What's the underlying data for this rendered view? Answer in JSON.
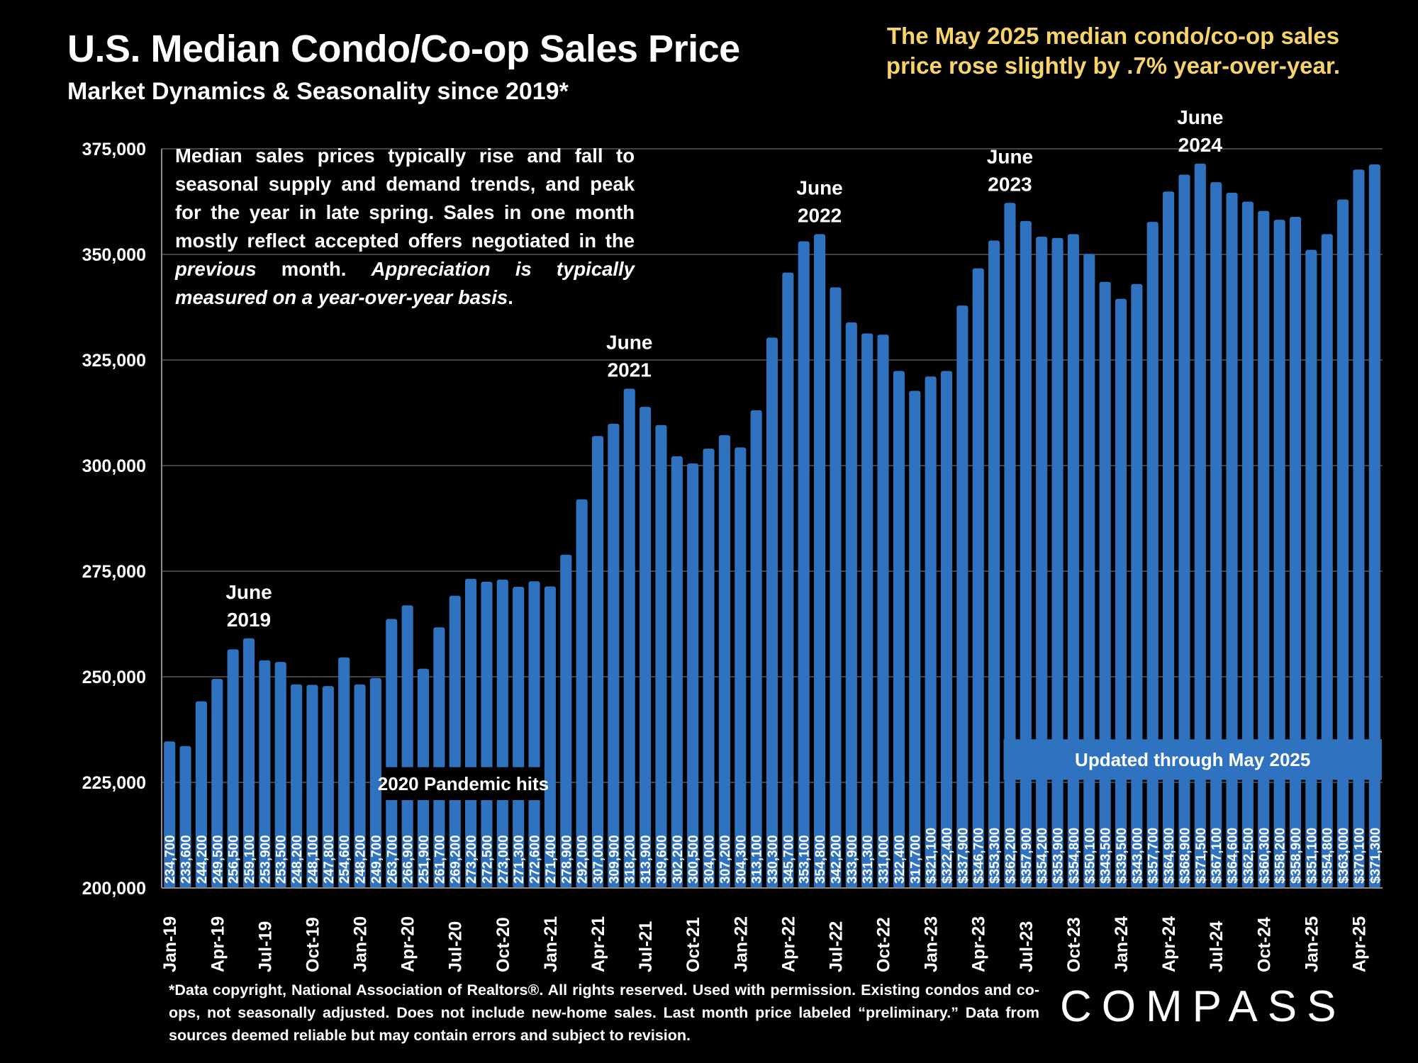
{
  "header": {
    "title": "U.S. Median Condo/Co-op Sales Price",
    "subtitle": "Market Dynamics & Seasonality since 2019*",
    "headline_line1": "The May 2025 median condo/co-op sales",
    "headline_line2": "price rose slightly by .7% year-over-year."
  },
  "explanation": {
    "part1": "Median sales prices typically rise and fall to seasonal supply and demand trends, and peak for the year in late spring. Sales in one month mostly reflect accepted offers negotiated in the ",
    "italic1": "previous",
    "part2": " month. ",
    "italic2": "Appreciation is typically measured on a year-over-year basis",
    "part3": "."
  },
  "footnote": "*Data copyright, National Association of Realtors®. All rights reserved. Used with permission. Existing condos and co-ops, not seasonally adjusted. Does not include new-home sales. Last month price labeled “preliminary.” Data from sources deemed reliable but may contain errors and subject to revision.",
  "logo": "COMPASS",
  "colors": {
    "bar": "#2f72bf",
    "headline": "#f7d36b",
    "background": "#000000",
    "grid": "#595959"
  },
  "chart_data": {
    "type": "bar",
    "title": "U.S. Median Condo/Co-op Sales Price",
    "subtitle": "Market Dynamics & Seasonality since 2019*",
    "xlabel": "",
    "ylabel": "",
    "ylim": [
      200000,
      375000
    ],
    "yticks": [
      200000,
      225000,
      250000,
      275000,
      300000,
      325000,
      350000,
      375000
    ],
    "ytick_labels": [
      "200,000",
      "225,000",
      "250,000",
      "275,000",
      "300,000",
      "325,000",
      "350,000",
      "375,000"
    ],
    "grid": true,
    "categories": [
      "Jan-19",
      "Feb-19",
      "Mar-19",
      "Apr-19",
      "May-19",
      "Jun-19",
      "Jul-19",
      "Aug-19",
      "Sep-19",
      "Oct-19",
      "Nov-19",
      "Dec-19",
      "Jan-20",
      "Feb-20",
      "Mar-20",
      "Apr-20",
      "May-20",
      "Jun-20",
      "Jul-20",
      "Aug-20",
      "Sep-20",
      "Oct-20",
      "Nov-20",
      "Dec-20",
      "Jan-21",
      "Feb-21",
      "Mar-21",
      "Apr-21",
      "May-21",
      "Jun-21",
      "Jul-21",
      "Aug-21",
      "Sep-21",
      "Oct-21",
      "Nov-21",
      "Dec-21",
      "Jan-22",
      "Feb-22",
      "Mar-22",
      "Apr-22",
      "May-22",
      "Jun-22",
      "Jul-22",
      "Aug-22",
      "Sep-22",
      "Oct-22",
      "Nov-22",
      "Dec-22",
      "Jan-23",
      "Feb-23",
      "Mar-23",
      "Apr-23",
      "May-23",
      "Jun-23",
      "Jul-23",
      "Aug-23",
      "Sep-23",
      "Oct-23",
      "Nov-23",
      "Dec-23",
      "Jan-24",
      "Feb-24",
      "Mar-24",
      "Apr-24",
      "May-24",
      "Jun-24",
      "Jul-24",
      "Aug-24",
      "Sep-24",
      "Oct-24",
      "Nov-24",
      "Dec-24",
      "Jan-25",
      "Feb-25",
      "Mar-25",
      "Apr-25",
      "May-25"
    ],
    "xtick_labels_shown": [
      "Jan-19",
      "Apr-19",
      "Jul-19",
      "Oct-19",
      "Jan-20",
      "Apr-20",
      "Jul-20",
      "Oct-20",
      "Jan-21",
      "Apr-21",
      "Jul-21",
      "Oct-21",
      "Jan-22",
      "Apr-22",
      "Jul-22",
      "Oct-22",
      "Jan-23",
      "Apr-23",
      "Jul-23",
      "Oct-23",
      "Jan-24",
      "Apr-24",
      "Jul-24",
      "Oct-24",
      "Jan-25",
      "Apr-25"
    ],
    "values": [
      234700,
      233600,
      244200,
      249500,
      256500,
      259100,
      253900,
      253500,
      248200,
      248100,
      247800,
      254600,
      248200,
      249700,
      263700,
      266900,
      251900,
      261700,
      269200,
      273200,
      272500,
      273000,
      271300,
      272600,
      271400,
      278900,
      292000,
      307000,
      309900,
      318200,
      313900,
      309600,
      302200,
      300500,
      304000,
      307200,
      304300,
      313100,
      330300,
      345700,
      353100,
      354800,
      342200,
      333900,
      331300,
      331000,
      322400,
      317700,
      321100,
      322400,
      337900,
      346700,
      353300,
      362200,
      357900,
      354200,
      353900,
      354800,
      350100,
      343500,
      339500,
      343000,
      357700,
      364900,
      368900,
      371500,
      367100,
      364600,
      362500,
      360300,
      358200,
      358900,
      351100,
      354800,
      363000,
      370100,
      371300
    ],
    "value_labels_dollar_from": "Jan-23",
    "annotations": [
      {
        "line1": "June",
        "line2": "2019",
        "at": "Jun-19"
      },
      {
        "line1": "June",
        "line2": "2021",
        "at": "Jun-21"
      },
      {
        "line1": "June",
        "line2": "2022",
        "at": "Jun-22"
      },
      {
        "line1": "June",
        "line2": "2023",
        "at": "Jun-23"
      },
      {
        "line1": "June",
        "line2": "2024",
        "at": "Jun-24"
      }
    ],
    "callouts": [
      {
        "text": "2020 Pandemic hits",
        "from": "Mar-20",
        "to": "Dec-20",
        "style": "dark"
      },
      {
        "text": "Updated through May 2025",
        "from": "Jun-23",
        "to": "May-25",
        "style": "blue"
      }
    ]
  }
}
